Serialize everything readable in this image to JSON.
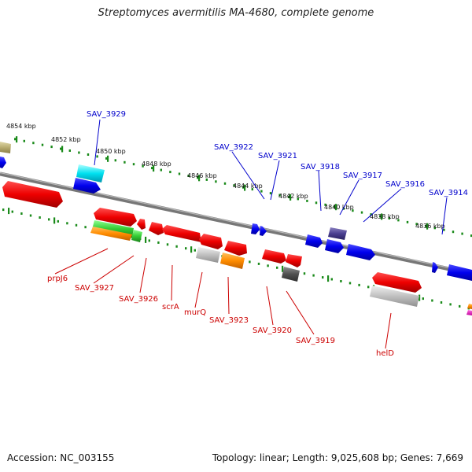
{
  "title": "Streptomyces avermitilis MA-4680, complete genome",
  "accession": "Accession: NC_003155",
  "footer": "Topology: linear; Length: 9,025,608 bp; Genes: 7,669",
  "colors": {
    "backbone": "#7a7a7a",
    "forward_label": "#0000cc",
    "reverse_label": "#cc0000",
    "tick": "#1a8a1a"
  },
  "scale_labels": [
    "4854 kbp",
    "4852 kbp",
    "4850 kbp",
    "4848 kbp",
    "4846 kbp",
    "4844 kbp",
    "4842 kbp",
    "4840 kbp",
    "4838 kbp",
    "4836 kbp"
  ],
  "upper_labels": [
    "SAV_3929",
    "SAV_3922",
    "SAV_3921",
    "SAV_3918",
    "SAV_3917",
    "SAV_3916",
    "SAV_3914"
  ],
  "lower_labels": [
    "prpJ6",
    "SAV_3927",
    "SAV_3926",
    "scrA",
    "murQ",
    "SAV_3923",
    "SAV_3920",
    "SAV_3919",
    "helD"
  ]
}
